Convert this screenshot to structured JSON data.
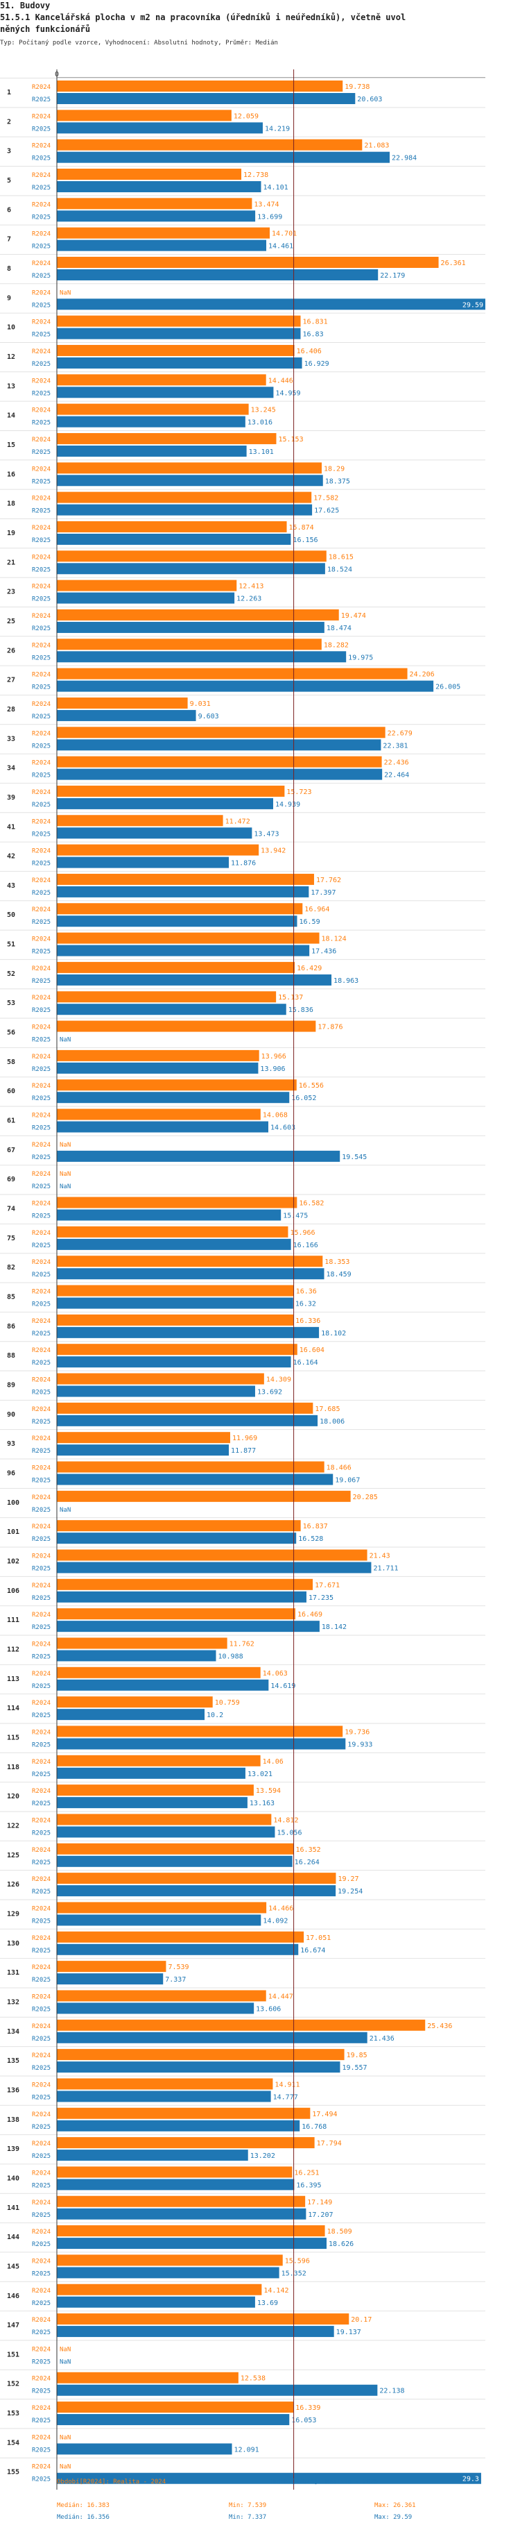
{
  "header": {
    "section": "51. Budovy",
    "title_line1": "51.5.1 Kancelářská plocha v m2 na pracovníka (úředníků i neúředníků), včetně uvol",
    "title_line2": "něných funkcionářů",
    "subtitle": "Typ: Počítaný podle vzorce, Vyhodnocení: Absolutní hodnoty, Průměr: Medián"
  },
  "colors": {
    "r2024": "#ff7f0e",
    "r2025": "#1f77b4",
    "median_line": "#7a1f1f"
  },
  "legend": {
    "r2024": {
      "label": "Období[R2024]: Realita - 2024",
      "median": "Medián: 16.383",
      "min": "Min: 7.539",
      "max": "Max: 26.361"
    },
    "r2025": {
      "label": "Období[R2025]: Realita - 2025",
      "median": "Medián: 16.356",
      "min": "Min: 7.337",
      "max": "Max: 29.59"
    }
  },
  "chart_data": {
    "type": "bar",
    "orientation": "horizontal",
    "axis_zero_label": "0",
    "xlim": [
      0,
      29.59
    ],
    "median_line": 16.356,
    "series_names": [
      "R2024",
      "R2025"
    ],
    "null_label": "NaN",
    "rows": [
      {
        "code": "1",
        "r2024": 19.738,
        "r2025": 20.603
      },
      {
        "code": "2",
        "r2024": 12.059,
        "r2025": 14.219
      },
      {
        "code": "3",
        "r2024": 21.083,
        "r2025": 22.984
      },
      {
        "code": "5",
        "r2024": 12.738,
        "r2025": 14.101
      },
      {
        "code": "6",
        "r2024": 13.474,
        "r2025": 13.699
      },
      {
        "code": "7",
        "r2024": 14.701,
        "r2025": 14.461
      },
      {
        "code": "8",
        "r2024": 26.361,
        "r2025": 22.179
      },
      {
        "code": "9",
        "r2024": null,
        "r2025": 29.59
      },
      {
        "code": "10",
        "r2024": 16.831,
        "r2025": 16.83
      },
      {
        "code": "12",
        "r2024": 16.406,
        "r2025": 16.929
      },
      {
        "code": "13",
        "r2024": 14.446,
        "r2025": 14.959
      },
      {
        "code": "14",
        "r2024": 13.245,
        "r2025": 13.016
      },
      {
        "code": "15",
        "r2024": 15.153,
        "r2025": 13.101
      },
      {
        "code": "16",
        "r2024": 18.29,
        "r2025": 18.375
      },
      {
        "code": "18",
        "r2024": 17.582,
        "r2025": 17.625
      },
      {
        "code": "19",
        "r2024": 15.874,
        "r2025": 16.156
      },
      {
        "code": "21",
        "r2024": 18.615,
        "r2025": 18.524
      },
      {
        "code": "23",
        "r2024": 12.413,
        "r2025": 12.263
      },
      {
        "code": "25",
        "r2024": 19.474,
        "r2025": 18.474
      },
      {
        "code": "26",
        "r2024": 18.282,
        "r2025": 19.975
      },
      {
        "code": "27",
        "r2024": 24.206,
        "r2025": 26.005
      },
      {
        "code": "28",
        "r2024": 9.031,
        "r2025": 9.603
      },
      {
        "code": "33",
        "r2024": 22.679,
        "r2025": 22.381
      },
      {
        "code": "34",
        "r2024": 22.436,
        "r2025": 22.464
      },
      {
        "code": "39",
        "r2024": 15.723,
        "r2025": 14.939
      },
      {
        "code": "41",
        "r2024": 11.472,
        "r2025": 13.473
      },
      {
        "code": "42",
        "r2024": 13.942,
        "r2025": 11.876
      },
      {
        "code": "43",
        "r2024": 17.762,
        "r2025": 17.397
      },
      {
        "code": "50",
        "r2024": 16.964,
        "r2025": 16.59
      },
      {
        "code": "51",
        "r2024": 18.124,
        "r2025": 17.436
      },
      {
        "code": "52",
        "r2024": 16.429,
        "r2025": 18.963
      },
      {
        "code": "53",
        "r2024": 15.137,
        "r2025": 15.836
      },
      {
        "code": "56",
        "r2024": 17.876,
        "r2025": null
      },
      {
        "code": "58",
        "r2024": 13.966,
        "r2025": 13.906
      },
      {
        "code": "60",
        "r2024": 16.556,
        "r2025": 16.052
      },
      {
        "code": "61",
        "r2024": 14.068,
        "r2025": 14.603
      },
      {
        "code": "67",
        "r2024": null,
        "r2025": 19.545
      },
      {
        "code": "69",
        "r2024": null,
        "r2025": null
      },
      {
        "code": "74",
        "r2024": 16.582,
        "r2025": 15.475
      },
      {
        "code": "75",
        "r2024": 15.966,
        "r2025": 16.166
      },
      {
        "code": "82",
        "r2024": 18.353,
        "r2025": 18.459
      },
      {
        "code": "85",
        "r2024": 16.36,
        "r2025": 16.32
      },
      {
        "code": "86",
        "r2024": 16.336,
        "r2025": 18.102
      },
      {
        "code": "88",
        "r2024": 16.604,
        "r2025": 16.164
      },
      {
        "code": "89",
        "r2024": 14.309,
        "r2025": 13.692
      },
      {
        "code": "90",
        "r2024": 17.685,
        "r2025": 18.006
      },
      {
        "code": "93",
        "r2024": 11.969,
        "r2025": 11.877
      },
      {
        "code": "96",
        "r2024": 18.466,
        "r2025": 19.067
      },
      {
        "code": "100",
        "r2024": 20.285,
        "r2025": null
      },
      {
        "code": "101",
        "r2024": 16.837,
        "r2025": 16.528
      },
      {
        "code": "102",
        "r2024": 21.43,
        "r2025": 21.711
      },
      {
        "code": "106",
        "r2024": 17.671,
        "r2025": 17.235
      },
      {
        "code": "111",
        "r2024": 16.469,
        "r2025": 18.142
      },
      {
        "code": "112",
        "r2024": 11.762,
        "r2025": 10.988
      },
      {
        "code": "113",
        "r2024": 14.063,
        "r2025": 14.619
      },
      {
        "code": "114",
        "r2024": 10.759,
        "r2025": 10.2
      },
      {
        "code": "115",
        "r2024": 19.736,
        "r2025": 19.933
      },
      {
        "code": "118",
        "r2024": 14.06,
        "r2025": 13.021
      },
      {
        "code": "120",
        "r2024": 13.594,
        "r2025": 13.163
      },
      {
        "code": "122",
        "r2024": 14.812,
        "r2025": 15.056
      },
      {
        "code": "125",
        "r2024": 16.352,
        "r2025": 16.264
      },
      {
        "code": "126",
        "r2024": 19.27,
        "r2025": 19.254
      },
      {
        "code": "129",
        "r2024": 14.466,
        "r2025": 14.092
      },
      {
        "code": "130",
        "r2024": 17.051,
        "r2025": 16.674
      },
      {
        "code": "131",
        "r2024": 7.539,
        "r2025": 7.337
      },
      {
        "code": "132",
        "r2024": 14.447,
        "r2025": 13.606
      },
      {
        "code": "134",
        "r2024": 25.436,
        "r2025": 21.436
      },
      {
        "code": "135",
        "r2024": 19.85,
        "r2025": 19.557
      },
      {
        "code": "136",
        "r2024": 14.911,
        "r2025": 14.777
      },
      {
        "code": "138",
        "r2024": 17.494,
        "r2025": 16.768
      },
      {
        "code": "139",
        "r2024": 17.794,
        "r2025": 13.202
      },
      {
        "code": "140",
        "r2024": 16.251,
        "r2025": 16.395
      },
      {
        "code": "141",
        "r2024": 17.149,
        "r2025": 17.207
      },
      {
        "code": "144",
        "r2024": 18.509,
        "r2025": 18.626
      },
      {
        "code": "145",
        "r2024": 15.596,
        "r2025": 15.352
      },
      {
        "code": "146",
        "r2024": 14.142,
        "r2025": 13.69
      },
      {
        "code": "147",
        "r2024": 20.17,
        "r2025": 19.137
      },
      {
        "code": "151",
        "r2024": null,
        "r2025": null
      },
      {
        "code": "152",
        "r2024": 12.538,
        "r2025": 22.138
      },
      {
        "code": "153",
        "r2024": 16.339,
        "r2025": 16.053
      },
      {
        "code": "154",
        "r2024": null,
        "r2025": 12.091
      },
      {
        "code": "155",
        "r2024": null,
        "r2025": 29.3
      }
    ]
  }
}
